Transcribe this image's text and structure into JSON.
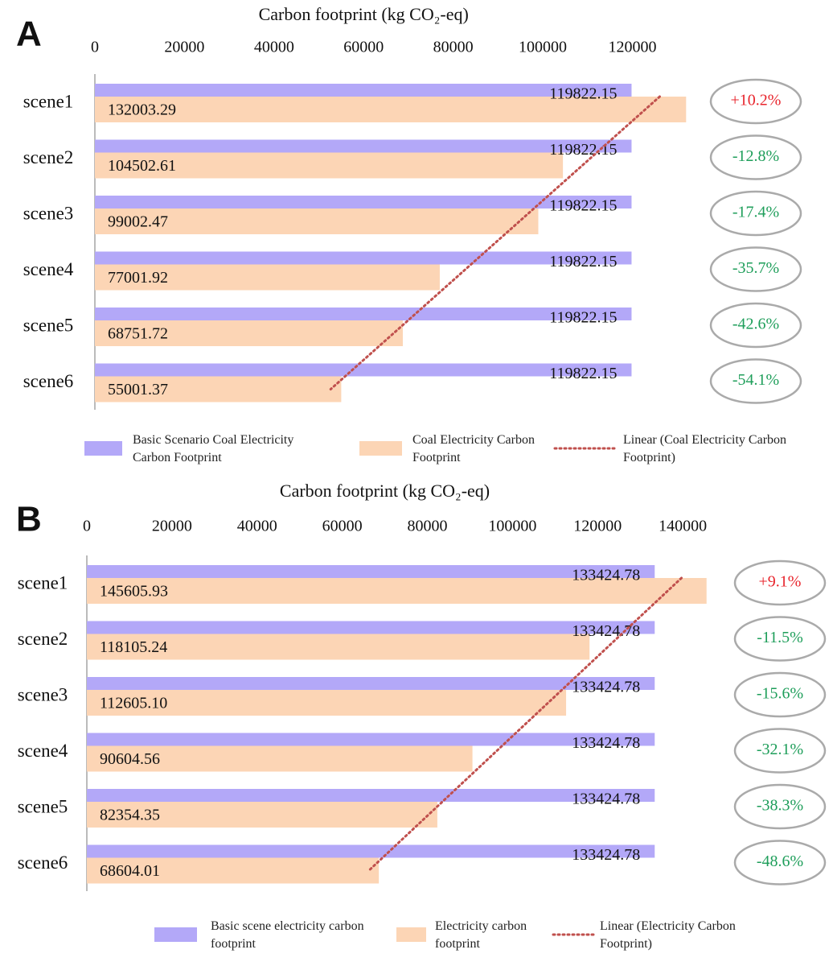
{
  "chart_data": [
    {
      "type": "hbar",
      "panel_label": "A",
      "x_label": "Carbon footprint (kg CO₂-eq)",
      "categories": [
        "scene1",
        "scene2",
        "scene3",
        "scene4",
        "scene5",
        "scene6"
      ],
      "series": [
        {
          "name": "Basic Scenario Coal Electricity Carbon Footprint",
          "color": "#b3a8f8",
          "values": [
            119822.15,
            119822.15,
            119822.15,
            119822.15,
            119822.15,
            119822.15
          ]
        },
        {
          "name": "Coal Electricity Carbon Footprint",
          "color": "#fcd5b5",
          "values": [
            132003.29,
            104502.61,
            99002.47,
            77001.92,
            68751.72,
            55001.37
          ]
        }
      ],
      "trendline": {
        "name": "Linear (Coal Electricity Carbon Footprint)",
        "color": "#c0504d"
      },
      "change_labels": [
        "+10.2%",
        "-12.8%",
        "-17.4%",
        "-35.7%",
        "-42.6%",
        "-54.1%"
      ],
      "increase_color": "#e8242c",
      "decrease_color": "#1e9e5a",
      "xlim": [
        0,
        135000
      ],
      "xticks": [
        0,
        20000,
        40000,
        60000,
        80000,
        100000,
        120000
      ]
    },
    {
      "type": "hbar",
      "panel_label": "B",
      "x_label": "Carbon footprint (kg CO₂-eq)",
      "categories": [
        "scene1",
        "scene2",
        "scene3",
        "scene4",
        "scene5",
        "scene6"
      ],
      "series": [
        {
          "name": "Basic scene electricity carbon footprint",
          "color": "#b3a8f8",
          "values": [
            133424.78,
            133424.78,
            133424.78,
            133424.78,
            133424.78,
            133424.78
          ]
        },
        {
          "name": "Electricity carbon footprint",
          "color": "#fcd5b5",
          "values": [
            145605.93,
            118105.24,
            112605.1,
            90604.56,
            82354.35,
            68604.01
          ],
          "value_labels": [
            "145605.93",
            "118105.24",
            "112605.10",
            "90604.56",
            "82354.35",
            "68604.01"
          ]
        }
      ],
      "trendline": {
        "name": "Linear (Electricity Carbon Footprint)",
        "color": "#c0504d"
      },
      "change_labels": [
        "+9.1%",
        "-11.5%",
        "-15.6%",
        "-32.1%",
        "-38.3%",
        "-48.6%"
      ],
      "increase_color": "#e8242c",
      "decrease_color": "#1e9e5a",
      "xlim": [
        0,
        150000
      ],
      "xticks": [
        0,
        20000,
        40000,
        60000,
        80000,
        100000,
        120000,
        140000
      ]
    }
  ]
}
